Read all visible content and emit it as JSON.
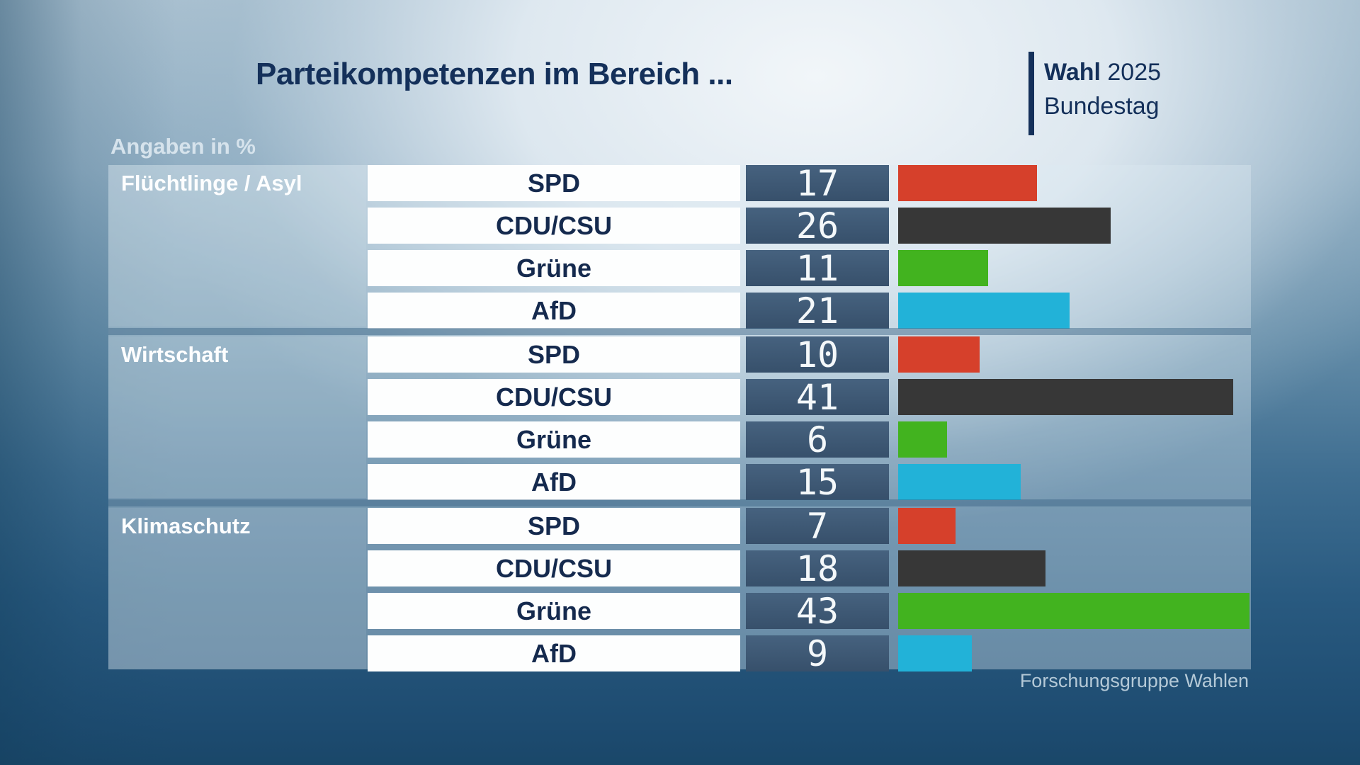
{
  "header": {
    "title": "Parteikompetenzen im Bereich ...",
    "brand": {
      "line1_bold": "Wahl",
      "line1_rest": " 2025",
      "line2": "Bundestag"
    }
  },
  "subtitle": "Angaben in %",
  "footer": {
    "source": "Forschungsgruppe Wahlen"
  },
  "colors": {
    "title_navy": "#14305a",
    "value_box_top": "#46627f",
    "value_box_bottom": "#37506b",
    "divider_band": "#4a7698",
    "party_label_text": "#152a4e",
    "value_text": "#f4f8fa",
    "subtitle_text": "#d6e3ec",
    "footer_text": "#b4c9d7"
  },
  "chart_data": {
    "type": "bar",
    "orientation": "horizontal",
    "title": "Parteikompetenzen im Bereich ...",
    "note": "Angaben in %",
    "unit": "%",
    "max_value": 43,
    "parties": [
      "SPD",
      "CDU/CSU",
      "Grüne",
      "AfD"
    ],
    "party_colors": {
      "SPD": "#d6402b",
      "CDU/CSU": "#373737",
      "Grüne": "#42b31f",
      "AfD": "#22b2d8"
    },
    "groups": [
      {
        "category": "Flüchtlinge / Asyl",
        "rows": [
          {
            "party": "SPD",
            "value": 17
          },
          {
            "party": "CDU/CSU",
            "value": 26
          },
          {
            "party": "Grüne",
            "value": 11
          },
          {
            "party": "AfD",
            "value": 21
          }
        ]
      },
      {
        "category": "Wirtschaft",
        "rows": [
          {
            "party": "SPD",
            "value": 10
          },
          {
            "party": "CDU/CSU",
            "value": 41
          },
          {
            "party": "Grüne",
            "value": 6
          },
          {
            "party": "AfD",
            "value": 15
          }
        ]
      },
      {
        "category": "Klimaschutz",
        "rows": [
          {
            "party": "SPD",
            "value": 7
          },
          {
            "party": "CDU/CSU",
            "value": 18
          },
          {
            "party": "Grüne",
            "value": 43
          },
          {
            "party": "AfD",
            "value": 9
          }
        ]
      }
    ],
    "source": "Forschungsgruppe Wahlen"
  }
}
